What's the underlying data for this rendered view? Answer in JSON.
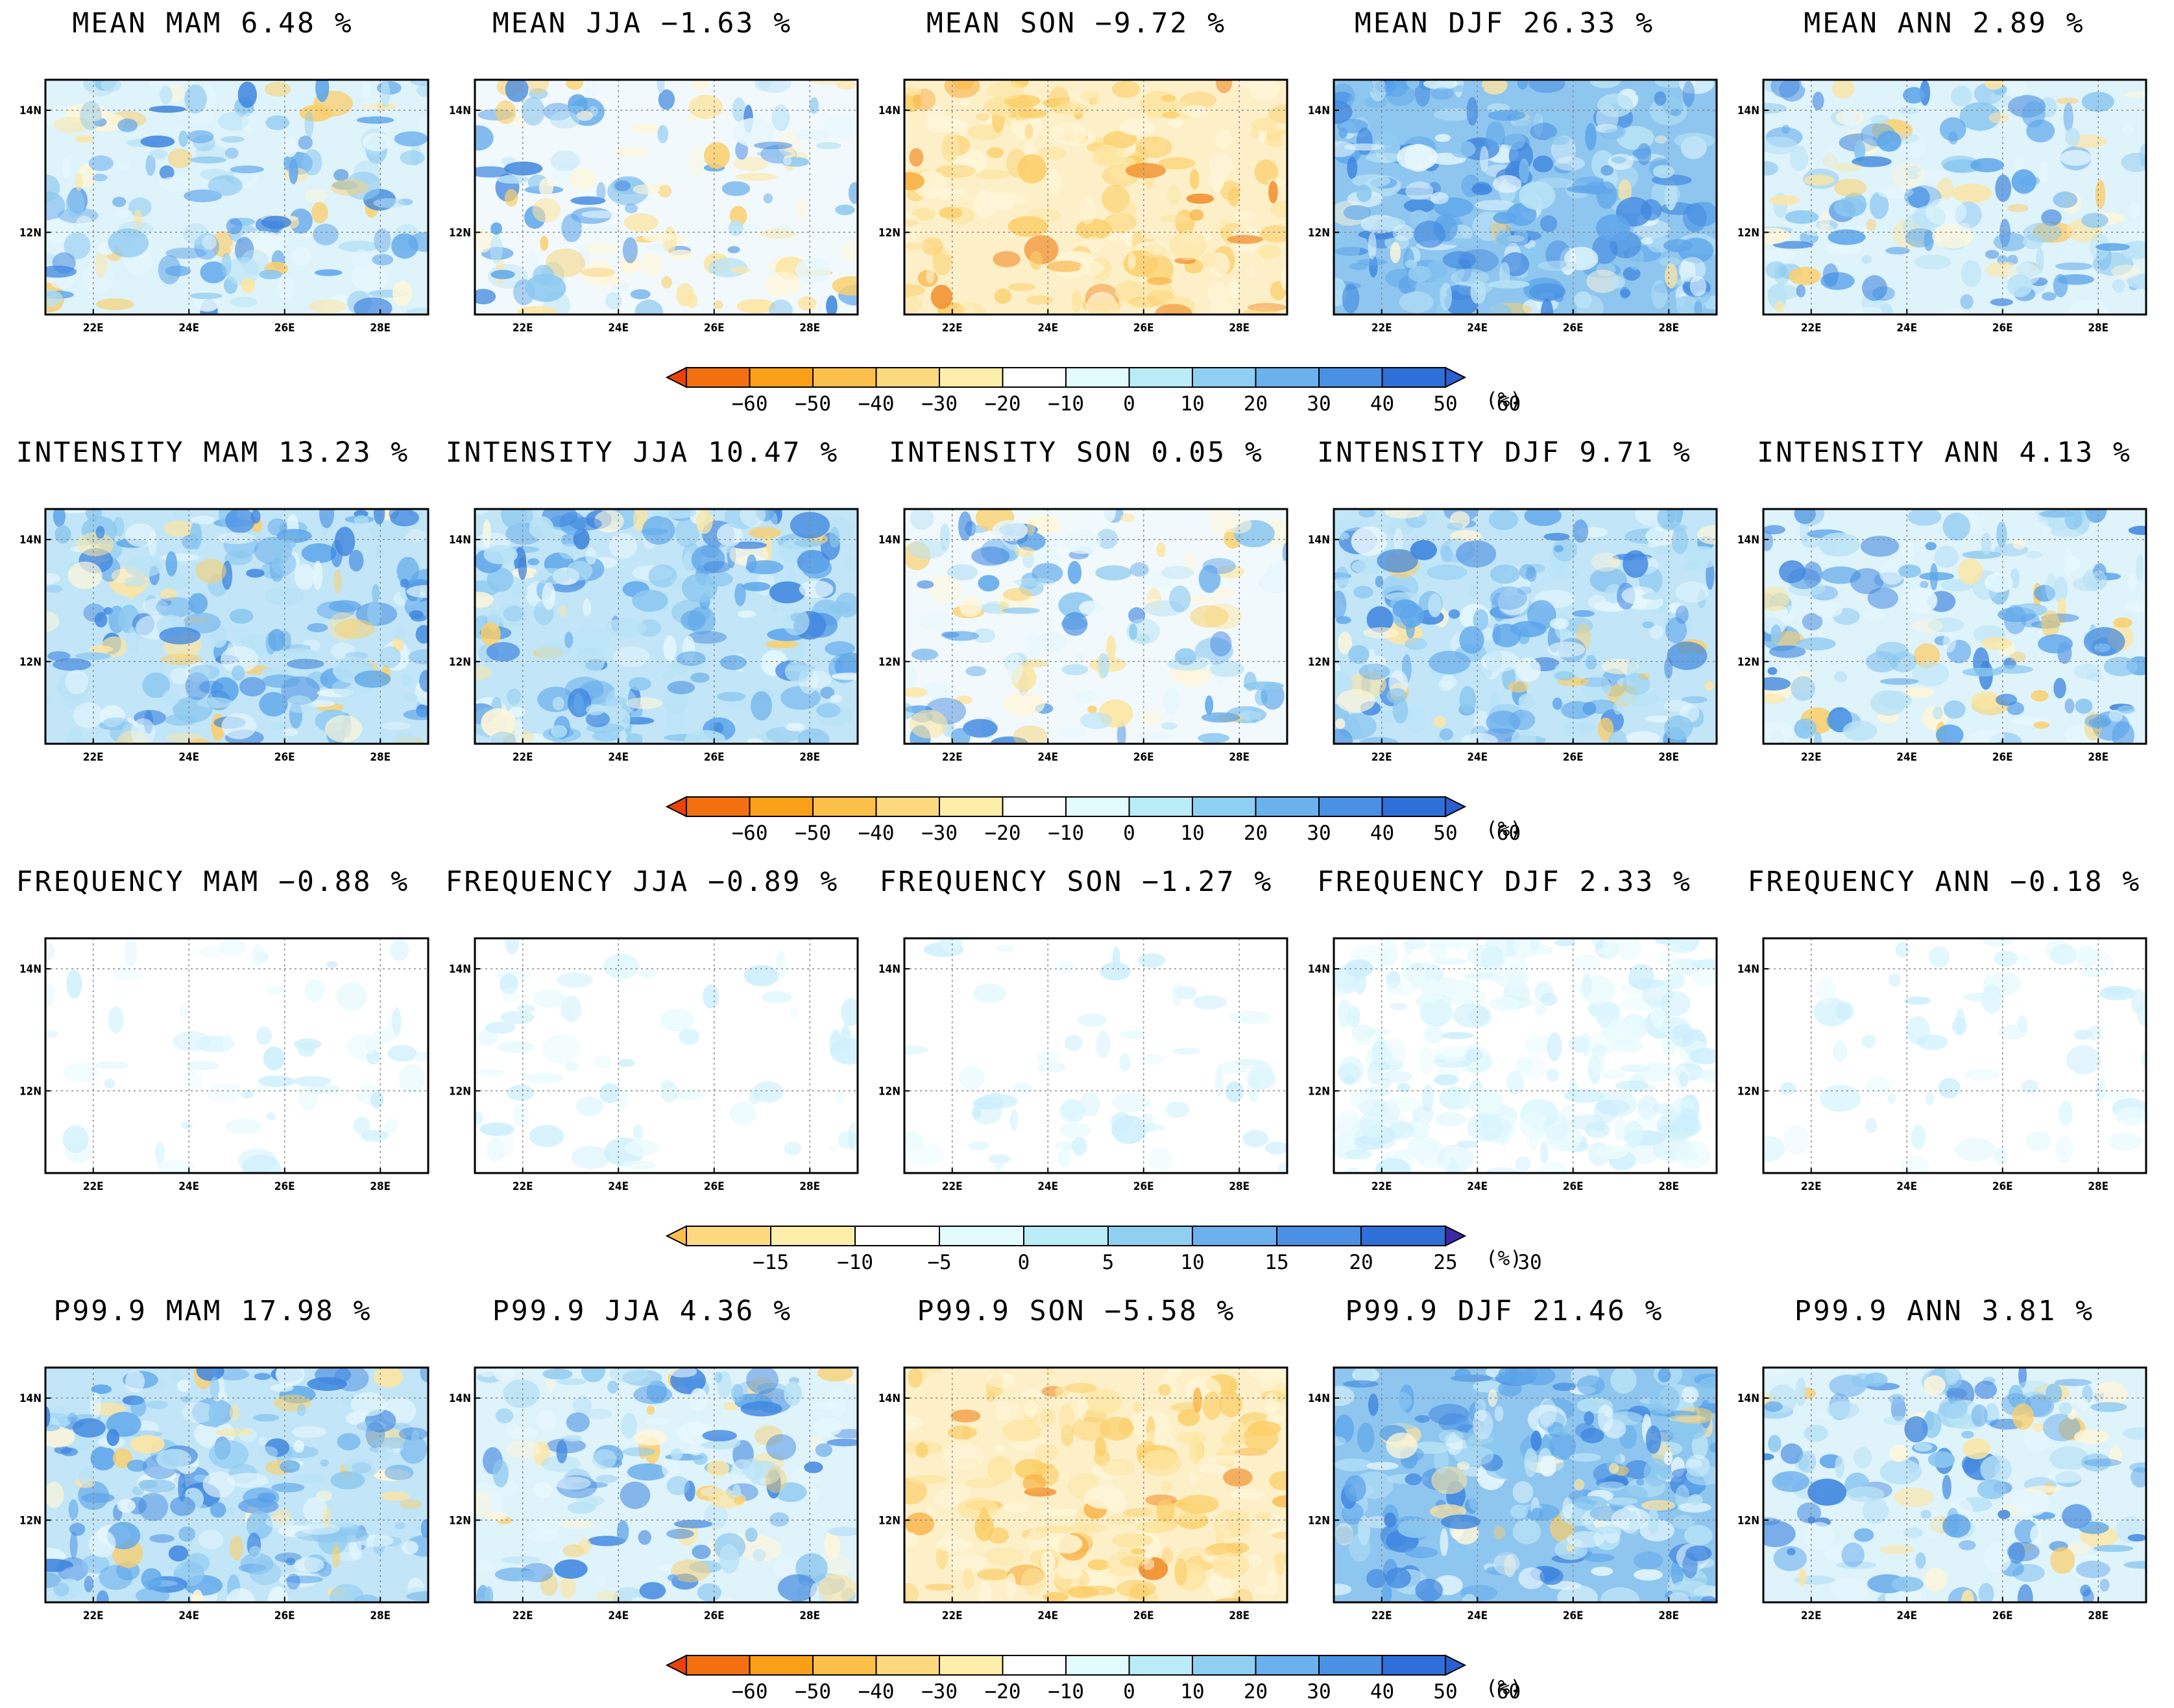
{
  "chart_data": {
    "type": "heatmap",
    "description_units": "%",
    "lon_ticks": [
      "22E",
      "24E",
      "26E",
      "28E"
    ],
    "lat_ticks": [
      "14N",
      "12N"
    ],
    "colorbars": [
      {
        "id": "cb_60",
        "labels": [
          "-60",
          "-50",
          "-40",
          "-30",
          "-20",
          "-10",
          "0",
          "10",
          "20",
          "30",
          "40",
          "50",
          "60"
        ],
        "unit": "(%)",
        "colors": [
          "#e8420a",
          "#f27010",
          "#f9a018",
          "#fbbf4a",
          "#fcd97e",
          "#fdeeaa",
          "#ffffff",
          "#e2fbfd",
          "#b9ecf6",
          "#8fd0f2",
          "#6ab1ee",
          "#4a90e4",
          "#2f6fda",
          "#2a5fd0"
        ]
      },
      {
        "id": "cb_30",
        "labels": [
          "-15",
          "-10",
          "-5",
          "0",
          "5",
          "10",
          "15",
          "20",
          "25",
          "30"
        ],
        "unit": "(%)",
        "colors": [
          "#fbbf4a",
          "#fcd97e",
          "#fdeeaa",
          "#ffffff",
          "#e2fbfd",
          "#b9ecf6",
          "#8fd0f2",
          "#6ab1ee",
          "#4a90e4",
          "#2f6fda",
          "#3a2aa8"
        ]
      }
    ],
    "rows": [
      {
        "metric": "MEAN",
        "colorbar": "cb_60",
        "panels": [
          {
            "title": "MEAN MAM 6.48 %",
            "season": "MAM",
            "value": 6.48
          },
          {
            "title": "MEAN JJA −1.63 %",
            "season": "JJA",
            "value": -1.63
          },
          {
            "title": "MEAN SON −9.72 %",
            "season": "SON",
            "value": -9.72
          },
          {
            "title": "MEAN DJF 26.33 %",
            "season": "DJF",
            "value": 26.33
          },
          {
            "title": "MEAN ANN 2.89 %",
            "season": "ANN",
            "value": 2.89
          }
        ]
      },
      {
        "metric": "INTENSITY",
        "colorbar": "cb_60",
        "panels": [
          {
            "title": "INTENSITY MAM 13.23 %",
            "season": "MAM",
            "value": 13.23
          },
          {
            "title": "INTENSITY JJA 10.47 %",
            "season": "JJA",
            "value": 10.47
          },
          {
            "title": "INTENSITY SON 0.05 %",
            "season": "SON",
            "value": 0.05
          },
          {
            "title": "INTENSITY DJF 9.71 %",
            "season": "DJF",
            "value": 9.71
          },
          {
            "title": "INTENSITY ANN 4.13 %",
            "season": "ANN",
            "value": 4.13
          }
        ]
      },
      {
        "metric": "FREQUENCY",
        "colorbar": "cb_30",
        "panels": [
          {
            "title": "FREQUENCY MAM −0.88 %",
            "season": "MAM",
            "value": -0.88
          },
          {
            "title": "FREQUENCY JJA −0.89 %",
            "season": "JJA",
            "value": -0.89
          },
          {
            "title": "FREQUENCY SON −1.27 %",
            "season": "SON",
            "value": -1.27
          },
          {
            "title": "FREQUENCY DJF 2.33 %",
            "season": "DJF",
            "value": 2.33
          },
          {
            "title": "FREQUENCY ANN −0.18 %",
            "season": "ANN",
            "value": -0.18
          }
        ]
      },
      {
        "metric": "P99.9",
        "colorbar": "cb_60",
        "panels": [
          {
            "title": "P99.9 MAM 17.98 %",
            "season": "MAM",
            "value": 17.98
          },
          {
            "title": "P99.9 JJA 4.36 %",
            "season": "JJA",
            "value": 4.36
          },
          {
            "title": "P99.9 SON −5.58 %",
            "season": "SON",
            "value": -5.58
          },
          {
            "title": "P99.9 DJF 21.46 %",
            "season": "DJF",
            "value": 21.46
          },
          {
            "title": "P99.9 ANN 3.81 %",
            "season": "ANN",
            "value": 3.81
          }
        ]
      }
    ]
  }
}
